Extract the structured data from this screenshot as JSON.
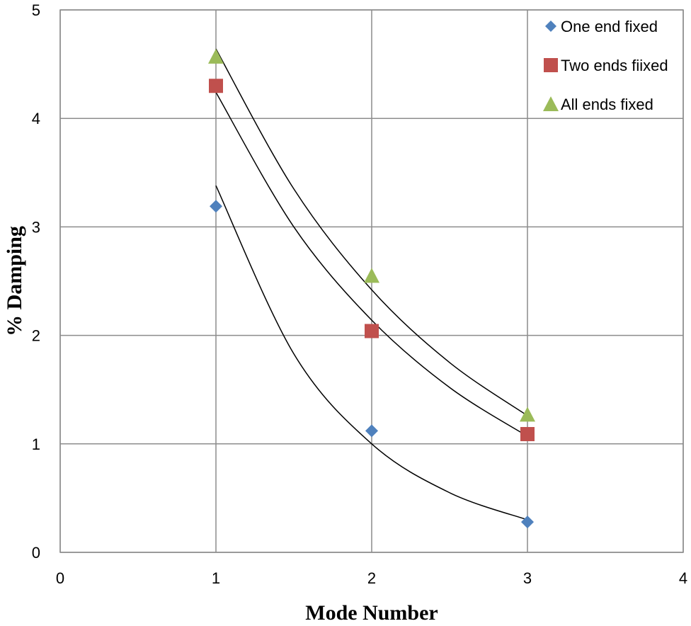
{
  "chart_data": {
    "type": "scatter",
    "title": "",
    "xlabel": "Mode Number",
    "ylabel": "% Damping",
    "xlim": [
      0,
      4
    ],
    "ylim": [
      0,
      5
    ],
    "x_ticks": [
      "0",
      "1",
      "2",
      "3",
      "4"
    ],
    "y_ticks": [
      "0",
      "1",
      "2",
      "3",
      "4",
      "5"
    ],
    "grid": true,
    "legend_position": "top-right",
    "series": [
      {
        "name": "One end fixed",
        "marker": "diamond",
        "color": "#4f81bd",
        "x": [
          1,
          2,
          3
        ],
        "y": [
          3.19,
          1.12,
          0.28
        ],
        "trendline": {
          "x": [
            1,
            1.5,
            2,
            2.5,
            3
          ],
          "y": [
            3.38,
            1.83,
            1.0,
            0.55,
            0.3
          ]
        }
      },
      {
        "name": "Two ends fiixed",
        "marker": "square",
        "color": "#c0504d",
        "x": [
          1,
          2,
          3
        ],
        "y": [
          4.3,
          2.04,
          1.09
        ],
        "trendline": {
          "x": [
            1,
            1.5,
            2,
            2.5,
            3
          ],
          "y": [
            4.24,
            3.0,
            2.14,
            1.52,
            1.07
          ]
        }
      },
      {
        "name": "All ends fixed",
        "marker": "triangle",
        "color": "#9bbb59",
        "x": [
          1,
          2,
          3
        ],
        "y": [
          4.57,
          2.55,
          1.27
        ],
        "trendline": {
          "x": [
            1,
            1.5,
            2,
            2.5,
            3
          ],
          "y": [
            4.64,
            3.35,
            2.42,
            1.75,
            1.26
          ]
        }
      }
    ]
  }
}
